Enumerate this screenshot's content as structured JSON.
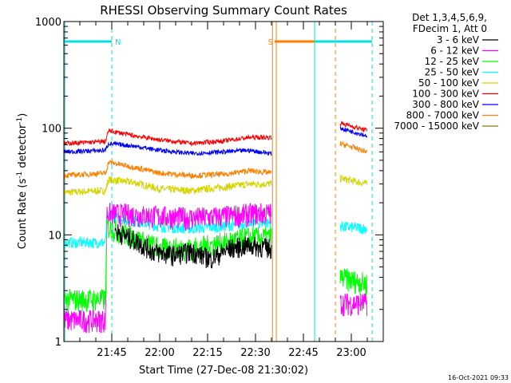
{
  "chart_data": {
    "type": "line",
    "title": "RHESSI Observing Summary Count Rates",
    "xlabel": "Start Time (27-Dec-08 21:30:02)",
    "ylabel_main": "Count Rate (s",
    "ylabel_sup1": "-1",
    "ylabel_mid": " detector",
    "ylabel_sup2": "-1",
    "ylabel_end": ")",
    "yscale": "log",
    "ylim": [
      1,
      1000
    ],
    "xlim_min": [
      0,
      100
    ],
    "x_ticks": [
      {
        "min": 15,
        "label": "21:45"
      },
      {
        "min": 30,
        "label": "22:00"
      },
      {
        "min": 45,
        "label": "22:15"
      },
      {
        "min": 60,
        "label": "22:30"
      },
      {
        "min": 75,
        "label": "22:45"
      },
      {
        "min": 90,
        "label": "23:00"
      }
    ],
    "y_ticks": [
      {
        "value": 1,
        "label": "1"
      },
      {
        "value": 10,
        "label": "10"
      },
      {
        "value": 100,
        "label": "100"
      },
      {
        "value": 1000,
        "label": "1000"
      }
    ],
    "legend": {
      "placement": "top-right",
      "header": [
        "Det 1,3,4,5,6,9,",
        "FDecim 1, Att 0"
      ]
    },
    "series": [
      {
        "name": "3 - 6 keV",
        "color": "#000000",
        "points": [
          [
            16,
            11
          ],
          [
            22,
            9
          ],
          [
            28,
            7
          ],
          [
            34,
            6.5
          ],
          [
            40,
            7
          ],
          [
            46,
            6
          ],
          [
            52,
            7.5
          ],
          [
            58,
            8
          ],
          [
            65,
            7.5
          ]
        ]
      },
      {
        "name": "6 - 12 keV",
        "color": "#ff00ff",
        "points": [
          [
            0,
            1.6
          ],
          [
            13,
            1.6
          ],
          [
            13.5,
            16
          ],
          [
            22,
            15.5
          ],
          [
            30,
            15
          ],
          [
            40,
            14.5
          ],
          [
            50,
            15
          ],
          [
            60,
            16
          ],
          [
            65,
            16
          ],
          [
            86.5,
            2.3
          ],
          [
            95,
            2.3
          ]
        ]
      },
      {
        "name": "12 - 25 keV",
        "color": "#00ff00",
        "points": [
          [
            0,
            2.5
          ],
          [
            13,
            2.5
          ],
          [
            13.5,
            12
          ],
          [
            20,
            10
          ],
          [
            30,
            7.5
          ],
          [
            40,
            7.5
          ],
          [
            50,
            8.5
          ],
          [
            58,
            9.5
          ],
          [
            65,
            9.5
          ],
          [
            86.5,
            4
          ],
          [
            95,
            3.5
          ]
        ]
      },
      {
        "name": "25 - 50 keV",
        "color": "#00ffff",
        "points": [
          [
            0,
            8.5
          ],
          [
            13,
            8.5
          ],
          [
            13.5,
            15
          ],
          [
            22,
            13.5
          ],
          [
            30,
            12
          ],
          [
            40,
            11.5
          ],
          [
            50,
            12
          ],
          [
            58,
            13
          ],
          [
            65,
            13
          ],
          [
            86.5,
            12
          ],
          [
            95,
            11.5
          ]
        ]
      },
      {
        "name": "50 - 100 keV",
        "color": "#d4d400",
        "points": [
          [
            0,
            25
          ],
          [
            13,
            26
          ],
          [
            14,
            33
          ],
          [
            22,
            31
          ],
          [
            30,
            27
          ],
          [
            40,
            26
          ],
          [
            50,
            28
          ],
          [
            58,
            30
          ],
          [
            65,
            30
          ],
          [
            86.5,
            34
          ],
          [
            95,
            30
          ]
        ]
      },
      {
        "name": "100 - 300 keV",
        "color": "#ff0000",
        "points": [
          [
            0,
            72
          ],
          [
            13,
            75
          ],
          [
            14,
            95
          ],
          [
            22,
            85
          ],
          [
            30,
            78
          ],
          [
            40,
            72
          ],
          [
            50,
            76
          ],
          [
            58,
            82
          ],
          [
            65,
            82
          ],
          [
            86.5,
            112
          ],
          [
            95,
            95
          ]
        ]
      },
      {
        "name": "300 - 800 keV",
        "color": "#0000ff",
        "points": [
          [
            0,
            60
          ],
          [
            13,
            62
          ],
          [
            14,
            72
          ],
          [
            22,
            68
          ],
          [
            30,
            62
          ],
          [
            40,
            58
          ],
          [
            50,
            60
          ],
          [
            58,
            62
          ],
          [
            65,
            58
          ],
          [
            86.5,
            100
          ],
          [
            95,
            85
          ]
        ]
      },
      {
        "name": "800 - 7000 keV",
        "color": "#ff8000",
        "points": [
          [
            0,
            36
          ],
          [
            13,
            38
          ],
          [
            14,
            48
          ],
          [
            22,
            43
          ],
          [
            30,
            38
          ],
          [
            40,
            36
          ],
          [
            50,
            37
          ],
          [
            58,
            40
          ],
          [
            65,
            38
          ],
          [
            86.5,
            72
          ],
          [
            95,
            60
          ]
        ]
      },
      {
        "name": "7000 - 15000 keV",
        "color": "#808000",
        "points": []
      }
    ],
    "annotations": [
      {
        "label": "N",
        "color": "#00e0e0",
        "y": 650,
        "x0": 0,
        "x1": 15
      },
      {
        "label": "S",
        "color": "#ff8000",
        "y": 650,
        "x0": 66,
        "x1": 81
      }
    ],
    "footer_date": "16-Oct-2021 09:33"
  }
}
